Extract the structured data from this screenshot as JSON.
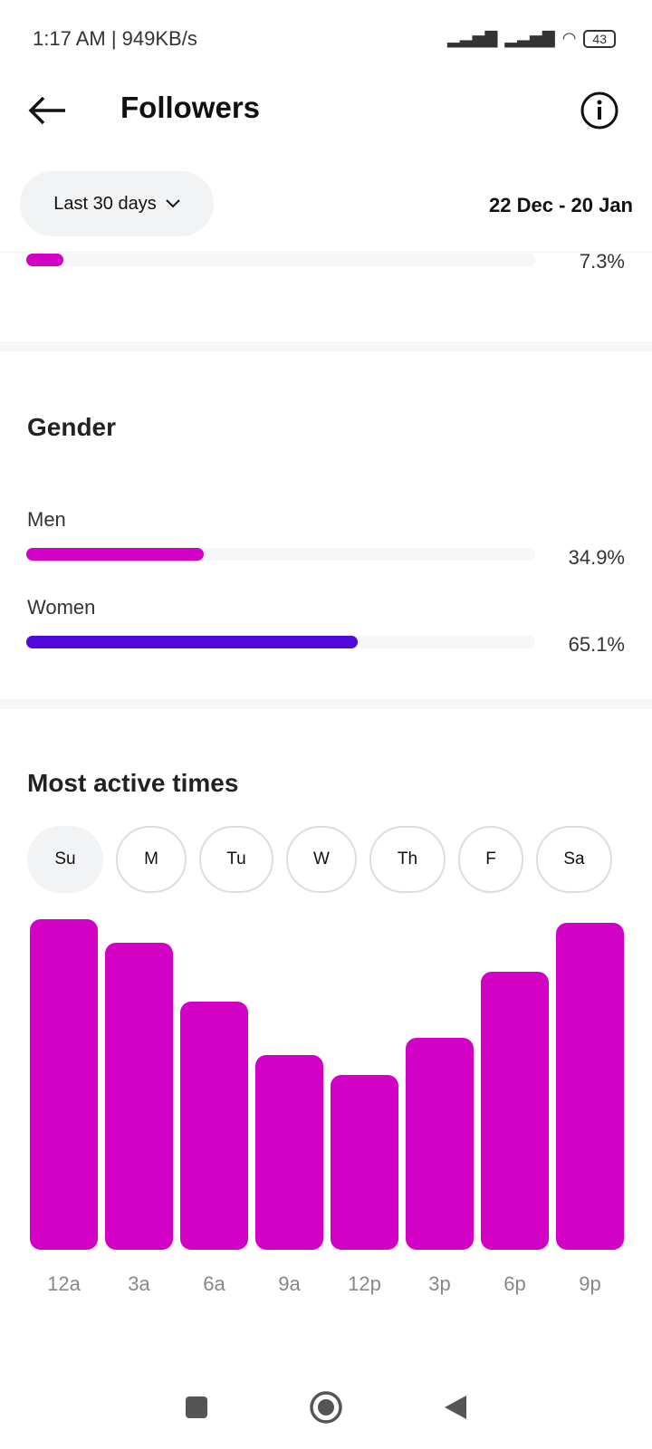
{
  "status_bar": {
    "time": "1:17 AM | 949KB/s",
    "battery": "43"
  },
  "header": {
    "title": "Followers"
  },
  "filter": {
    "range_label": "Last 30 days",
    "dates": "22 Dec - 20 Jan"
  },
  "prev_section": {
    "percent": "7.3%",
    "value": 7.3,
    "color": "#d300c5"
  },
  "gender": {
    "title": "Gender",
    "items": [
      {
        "label": "Men",
        "percent": "34.9%",
        "value": 34.9,
        "color": "#d300c5"
      },
      {
        "label": "Women",
        "percent": "65.1%",
        "value": 65.1,
        "color": "#5108d8"
      }
    ]
  },
  "active_times": {
    "title": "Most active times",
    "days": [
      "Su",
      "M",
      "Tu",
      "W",
      "Th",
      "F",
      "Sa"
    ],
    "selected_day": "Su"
  },
  "chart_data": {
    "type": "bar",
    "categories": [
      "12a",
      "3a",
      "6a",
      "9a",
      "12p",
      "3p",
      "6p",
      "9p"
    ],
    "values": [
      100,
      93,
      75,
      59,
      53,
      64,
      84,
      99
    ],
    "ylim": [
      0,
      100
    ],
    "title": "",
    "xlabel": "",
    "ylabel": "",
    "color": "#d300c5"
  }
}
